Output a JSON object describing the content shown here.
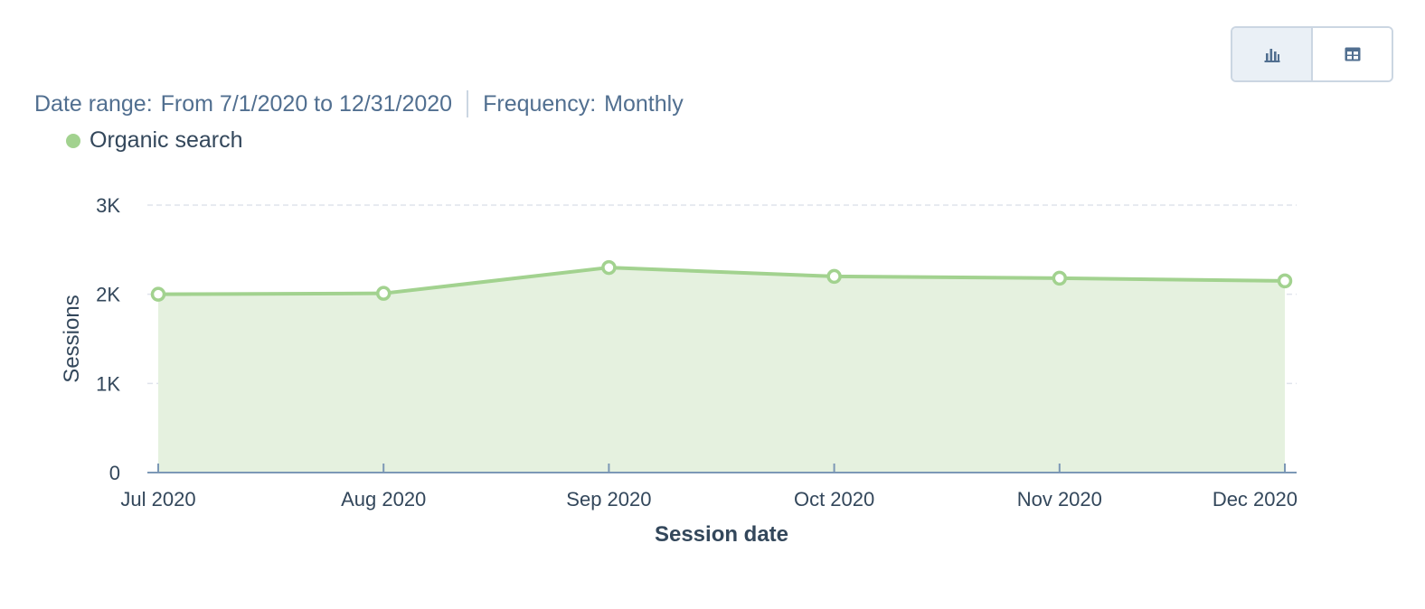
{
  "view_toggle": {
    "chart_icon": "bar-chart-icon",
    "table_icon": "table-icon",
    "active": "chart"
  },
  "meta": {
    "date_range_label": "Date range:",
    "date_range_value": "From 7/1/2020 to 12/31/2020",
    "frequency_label": "Frequency:",
    "frequency_value": "Monthly"
  },
  "chart_data": {
    "type": "area",
    "categories": [
      "Jul 2020",
      "Aug 2020",
      "Sep 2020",
      "Oct 2020",
      "Nov 2020",
      "Dec 2020"
    ],
    "series": [
      {
        "name": "Organic search",
        "values": [
          2000,
          2010,
          2300,
          2200,
          2180,
          2150
        ],
        "color": "#a2d28f",
        "fill": "#e5f1df"
      }
    ],
    "xlabel": "Session date",
    "ylabel": "Sessions",
    "ylim": [
      0,
      3000
    ],
    "yticks": [
      0,
      1000,
      2000,
      3000
    ],
    "ytick_labels": [
      "0",
      "1K",
      "2K",
      "3K"
    ],
    "grid": true,
    "legend": "top-left"
  }
}
